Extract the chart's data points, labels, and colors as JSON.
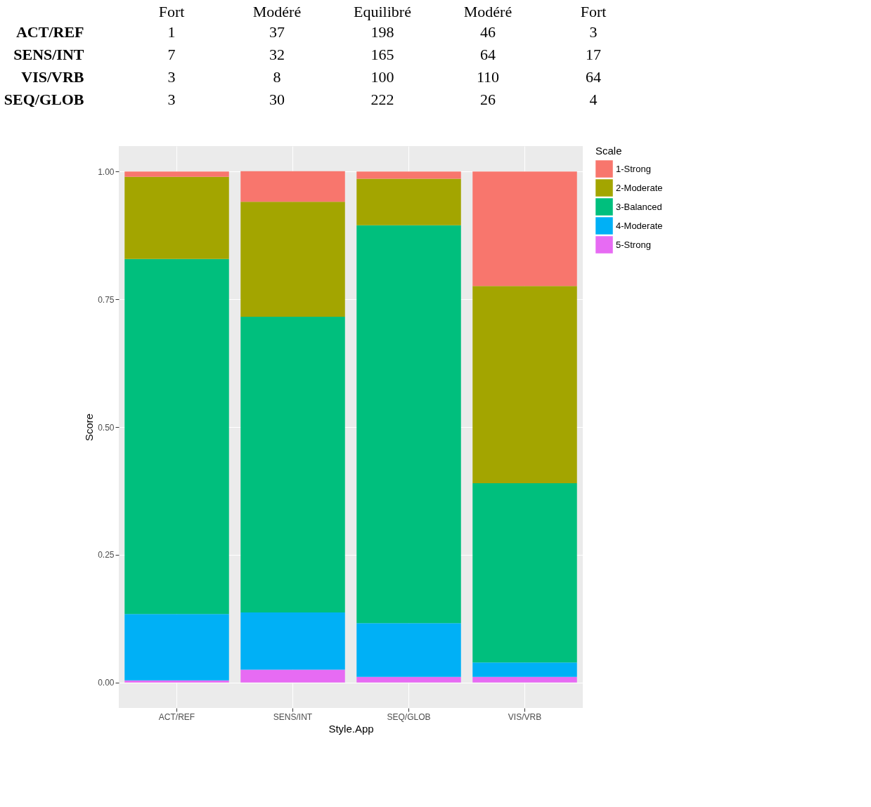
{
  "chart_data": [
    {
      "type": "heatmap",
      "categories": [
        "Fort",
        "Modéré",
        "Equilibré",
        "Modéré",
        "Fort"
      ],
      "y_categories": [
        "ACT/REF",
        "SENS/INT",
        "VIS/VRB",
        "SEQ/GLOB"
      ],
      "data_labels": true,
      "cells": [
        [
          1,
          37,
          198,
          46,
          3
        ],
        [
          7,
          32,
          165,
          64,
          17
        ],
        [
          3,
          8,
          100,
          110,
          64
        ],
        [
          3,
          30,
          222,
          26,
          4
        ]
      ]
    },
    {
      "type": "bar",
      "stacked": true,
      "xlabel": "Style.App",
      "ylabel": "Score",
      "legend_title": "Scale",
      "legend": "right",
      "grid": true,
      "categories": [
        "ACT/REF",
        "SENS/INT",
        "SEQ/GLOB",
        "VIS/VRB"
      ],
      "ylim": [
        -0.05,
        1.05
      ],
      "yticks": [
        {
          "value": 0,
          "label": "0.00"
        },
        {
          "value": 0.25,
          "label": "0.25"
        },
        {
          "value": 0.5,
          "label": "0.50"
        },
        {
          "value": 0.75,
          "label": "0.75"
        },
        {
          "value": 1,
          "label": "1.00"
        }
      ],
      "series": [
        {
          "name": "5-Strong",
          "color": "#e76bf3",
          "values": [
            0.004,
            0.025,
            0.011,
            0.011
          ]
        },
        {
          "name": "4-Moderate",
          "color": "#00b0f6",
          "values": [
            0.13,
            0.112,
            0.105,
            0.028
          ]
        },
        {
          "name": "3-Balanced",
          "color": "#00bf7d",
          "values": [
            0.695,
            0.579,
            0.779,
            0.351
          ]
        },
        {
          "name": "2-Moderate",
          "color": "#a3a500",
          "values": [
            0.161,
            0.225,
            0.091,
            0.386
          ]
        },
        {
          "name": "1-Strong",
          "color": "#f8766d",
          "values": [
            0.01,
            0.06,
            0.014,
            0.224
          ]
        }
      ]
    }
  ]
}
